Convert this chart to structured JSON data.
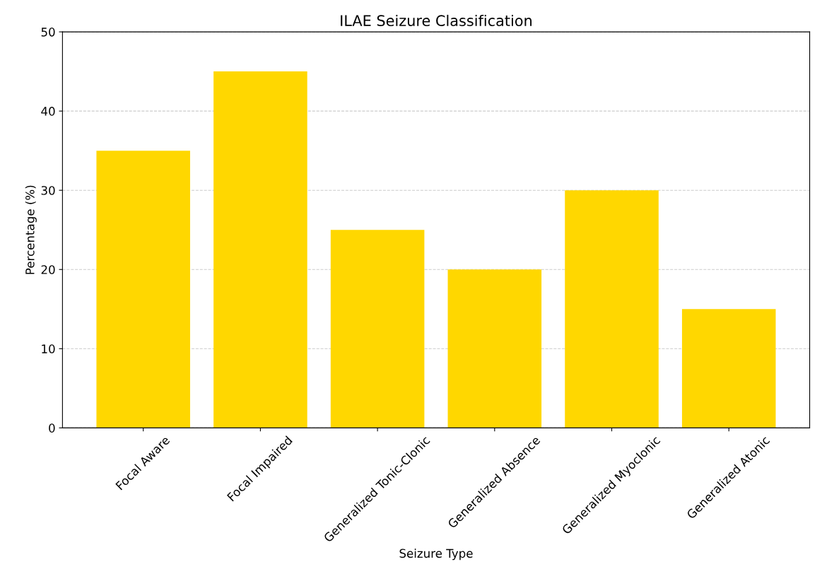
{
  "chart_data": {
    "type": "bar",
    "title": "ILAE Seizure Classification",
    "xlabel": "Seizure Type",
    "ylabel": "Percentage (%)",
    "categories": [
      "Focal Aware",
      "Focal Impaired",
      "Generalized Tonic-Clonic",
      "Generalized Absence",
      "Generalized Myoclonic",
      "Generalized Atonic"
    ],
    "values": [
      35,
      45,
      25,
      20,
      30,
      15
    ],
    "color": "#ffd700",
    "ylim": [
      0,
      50
    ],
    "yticks": [
      0,
      10,
      20,
      30,
      40,
      50
    ],
    "grid": "y"
  }
}
